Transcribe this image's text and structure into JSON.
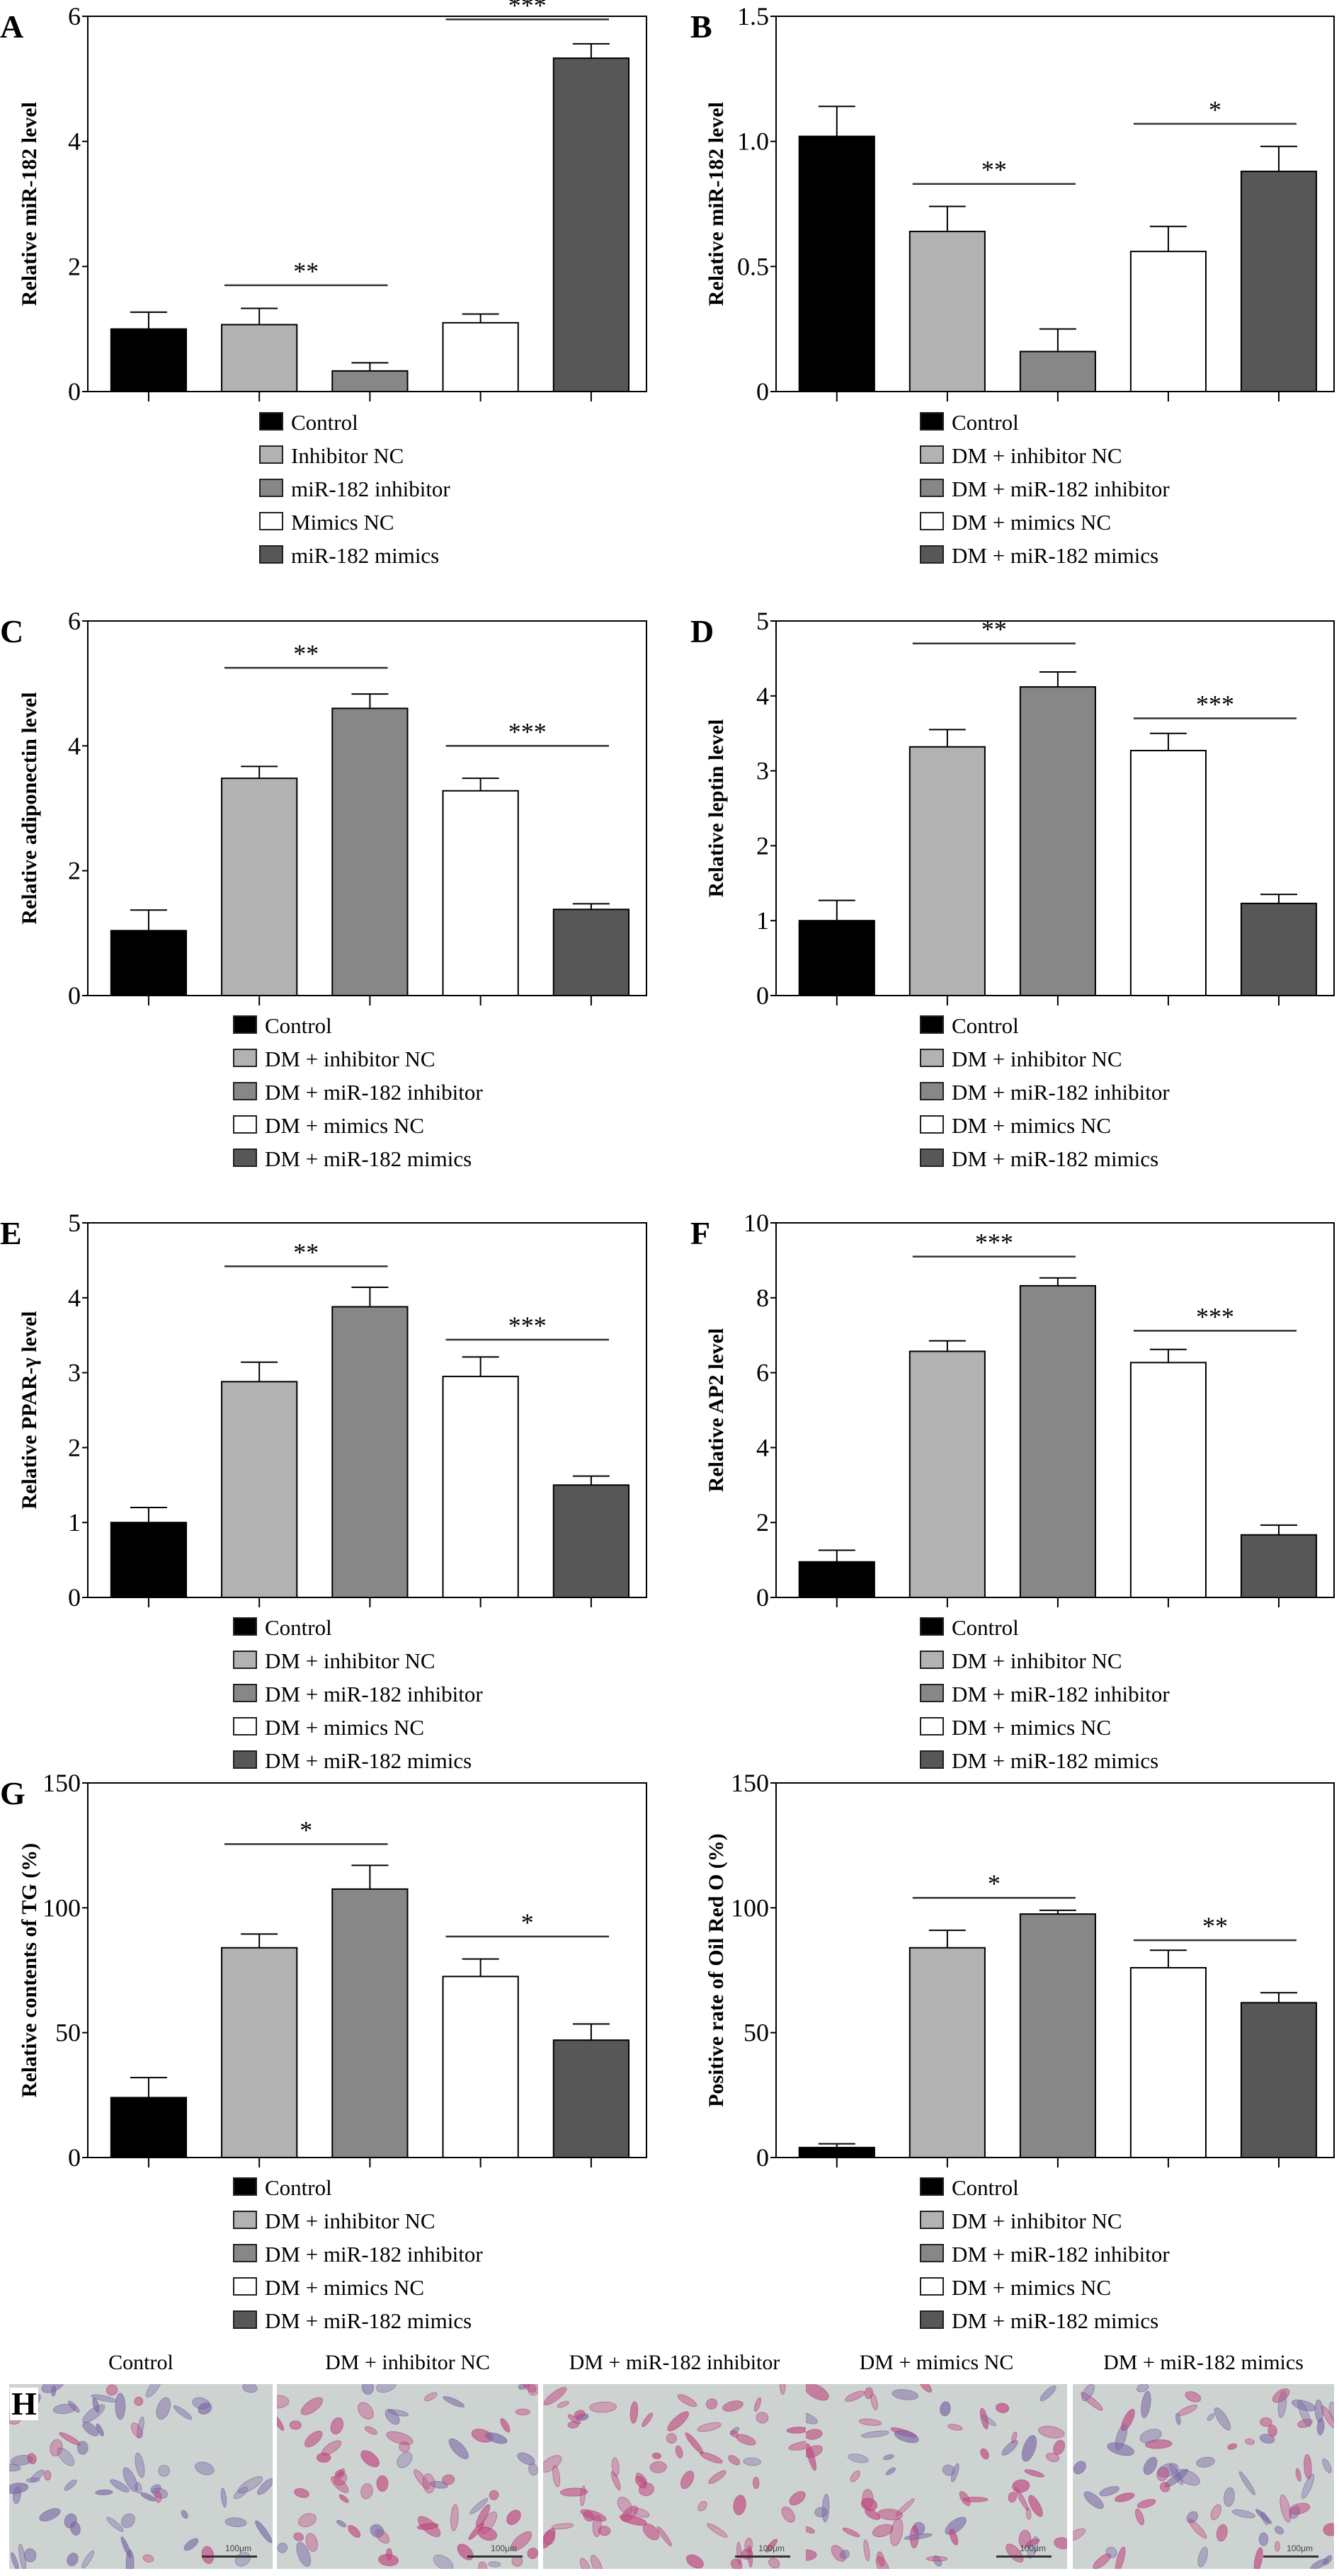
{
  "colors": {
    "control": "#000000",
    "inhibitor_nc": "#b2b2b2",
    "mir182_inhibitor": "#878787",
    "mimics_nc": "#ffffff",
    "mir182_mimics": "#575757",
    "cell_pink": "#c04a80",
    "cell_purple": "#7d6aa6"
  },
  "chart_data": [
    {
      "id": "A",
      "type": "bar",
      "panel_label": "A",
      "ylabel": "Relative miR-182 level",
      "ylim": [
        0,
        6
      ],
      "yticks": [
        "0",
        "2",
        "4",
        "6"
      ],
      "ytick_values": [
        0,
        2,
        4,
        6
      ],
      "categories": [
        "Control",
        "Inhibitor NC",
        "miR-182 inhibitor",
        "Mimics NC",
        "miR-182 mimics"
      ],
      "values": [
        1.0,
        1.07,
        0.33,
        1.1,
        5.33
      ],
      "errors": [
        0.27,
        0.26,
        0.13,
        0.14,
        0.23
      ],
      "significance": [
        {
          "from": 1,
          "to": 2,
          "label": "**",
          "y": 1.7
        },
        {
          "from": 3,
          "to": 4,
          "label": "***",
          "y": 5.95
        }
      ],
      "legend": [
        "Control",
        "Inhibitor NC",
        "miR-182 inhibitor",
        "Mimics NC",
        "miR-182 mimics"
      ],
      "legend_position": "bottom",
      "grid": false
    },
    {
      "id": "B",
      "type": "bar",
      "panel_label": "B",
      "ylabel": "Relative miR-182 level",
      "ylim": [
        0,
        1.5
      ],
      "yticks": [
        "0",
        "0.5",
        "1.0",
        "1.5"
      ],
      "ytick_values": [
        0,
        0.5,
        1.0,
        1.5
      ],
      "categories": [
        "Control",
        "DM + inhibitor NC",
        "DM + miR-182 inhibitor",
        "DM + mimics NC",
        "DM + miR-182 mimics"
      ],
      "values": [
        1.02,
        0.64,
        0.16,
        0.56,
        0.88
      ],
      "errors": [
        0.12,
        0.1,
        0.09,
        0.1,
        0.1
      ],
      "significance": [
        {
          "from": 1,
          "to": 2,
          "label": "**",
          "y": 0.83
        },
        {
          "from": 3,
          "to": 4,
          "label": "*",
          "y": 1.07
        }
      ],
      "legend": [
        "Control",
        "DM + inhibitor NC",
        "DM + miR-182 inhibitor",
        "DM + mimics NC",
        "DM + miR-182 mimics"
      ],
      "legend_position": "bottom",
      "grid": false
    },
    {
      "id": "C",
      "type": "bar",
      "panel_label": "C",
      "ylabel": "Relative adiponectin level",
      "ylim": [
        0,
        6
      ],
      "yticks": [
        "0",
        "2",
        "4",
        "6"
      ],
      "ytick_values": [
        0,
        2,
        4,
        6
      ],
      "categories": [
        "Control",
        "DM + inhibitor NC",
        "DM + miR-182 inhibitor",
        "DM + mimics NC",
        "DM + miR-182 mimics"
      ],
      "values": [
        1.04,
        3.48,
        4.6,
        3.28,
        1.38
      ],
      "errors": [
        0.33,
        0.19,
        0.23,
        0.2,
        0.09
      ],
      "significance": [
        {
          "from": 1,
          "to": 2,
          "label": "**",
          "y": 5.25
        },
        {
          "from": 3,
          "to": 4,
          "label": "***",
          "y": 4.0
        }
      ],
      "legend": [
        "Control",
        "DM + inhibitor NC",
        "DM + miR-182 inhibitor",
        "DM + mimics NC",
        "DM + miR-182 mimics"
      ],
      "legend_position": "bottom",
      "grid": false
    },
    {
      "id": "D",
      "type": "bar",
      "panel_label": "D",
      "ylabel": "Relative leptin level",
      "ylim": [
        0,
        5
      ],
      "yticks": [
        "0",
        "1",
        "2",
        "3",
        "4",
        "5"
      ],
      "ytick_values": [
        0,
        1,
        2,
        3,
        4,
        5
      ],
      "categories": [
        "Control",
        "DM + inhibitor NC",
        "DM + miR-182 inhibitor",
        "DM + mimics NC",
        "DM + miR-182 mimics"
      ],
      "values": [
        1.0,
        3.32,
        4.12,
        3.27,
        1.23
      ],
      "errors": [
        0.27,
        0.23,
        0.2,
        0.23,
        0.12
      ],
      "significance": [
        {
          "from": 1,
          "to": 2,
          "label": "**",
          "y": 4.7
        },
        {
          "from": 3,
          "to": 4,
          "label": "***",
          "y": 3.7
        }
      ],
      "legend": [
        "Control",
        "DM + inhibitor NC",
        "DM + miR-182 inhibitor",
        "DM + mimics NC",
        "DM + miR-182 mimics"
      ],
      "legend_position": "bottom",
      "grid": false
    },
    {
      "id": "E",
      "type": "bar",
      "panel_label": "E",
      "ylabel": "Relative PPAR-γ level",
      "ylim": [
        0,
        5
      ],
      "yticks": [
        "0",
        "1",
        "2",
        "3",
        "4",
        "5"
      ],
      "ytick_values": [
        0,
        1,
        2,
        3,
        4,
        5
      ],
      "categories": [
        "Control",
        "DM + inhibitor NC",
        "DM + miR-182 inhibitor",
        "DM + mimics NC",
        "DM + miR-182 mimics"
      ],
      "values": [
        1.0,
        2.88,
        3.88,
        2.95,
        1.5
      ],
      "errors": [
        0.2,
        0.26,
        0.26,
        0.26,
        0.12
      ],
      "significance": [
        {
          "from": 1,
          "to": 2,
          "label": "**",
          "y": 4.42
        },
        {
          "from": 3,
          "to": 4,
          "label": "***",
          "y": 3.44
        }
      ],
      "legend": [
        "Control",
        "DM + inhibitor NC",
        "DM + miR-182 inhibitor",
        "DM + mimics NC",
        "DM + miR-182 mimics"
      ],
      "legend_position": "bottom",
      "grid": false
    },
    {
      "id": "F",
      "type": "bar",
      "panel_label": "F",
      "ylabel": "Relative AP2 level",
      "ylim": [
        0,
        10
      ],
      "yticks": [
        "0",
        "2",
        "4",
        "6",
        "8",
        "10"
      ],
      "ytick_values": [
        0,
        2,
        4,
        6,
        8,
        10
      ],
      "categories": [
        "Control",
        "DM + inhibitor NC",
        "DM + miR-182 inhibitor",
        "DM + mimics NC",
        "DM + miR-182 mimics"
      ],
      "values": [
        0.95,
        6.57,
        8.32,
        6.27,
        1.67
      ],
      "errors": [
        0.31,
        0.28,
        0.21,
        0.35,
        0.26
      ],
      "significance": [
        {
          "from": 1,
          "to": 2,
          "label": "***",
          "y": 9.1
        },
        {
          "from": 3,
          "to": 4,
          "label": "***",
          "y": 7.12
        }
      ],
      "legend": [
        "Control",
        "DM + inhibitor NC",
        "DM + miR-182 inhibitor",
        "DM + mimics NC",
        "DM + miR-182 mimics"
      ],
      "legend_position": "bottom",
      "grid": false
    },
    {
      "id": "G",
      "type": "bar",
      "panel_label": "G",
      "ylabel": "Relative contents of TG (%)",
      "ylim": [
        0,
        150
      ],
      "yticks": [
        "0",
        "50",
        "100",
        "150"
      ],
      "ytick_values": [
        0,
        50,
        100,
        150
      ],
      "categories": [
        "Control",
        "DM + inhibitor NC",
        "DM + miR-182 inhibitor",
        "DM + mimics NC",
        "DM + miR-182 mimics"
      ],
      "values": [
        24,
        84,
        107.5,
        72.5,
        47
      ],
      "errors": [
        8,
        5.5,
        9.5,
        7,
        6.5
      ],
      "significance": [
        {
          "from": 1,
          "to": 2,
          "label": "*",
          "y": 125.5
        },
        {
          "from": 3,
          "to": 4,
          "label": "*",
          "y": 88.5
        }
      ],
      "legend": [
        "Control",
        "DM + inhibitor NC",
        "DM + miR-182 inhibitor",
        "DM + mimics NC",
        "DM + miR-182 mimics"
      ],
      "legend_position": "bottom",
      "grid": false
    },
    {
      "id": "G2",
      "type": "bar",
      "panel_label": "",
      "ylabel": "Positive rate of Oil Red O (%)",
      "ylim": [
        0,
        150
      ],
      "yticks": [
        "0",
        "50",
        "100",
        "150"
      ],
      "ytick_values": [
        0,
        50,
        100,
        150
      ],
      "categories": [
        "Control",
        "DM + inhibitor NC",
        "DM + miR-182 inhibitor",
        "DM + mimics NC",
        "DM + miR-182 mimics"
      ],
      "values": [
        4,
        84,
        97.5,
        76,
        62
      ],
      "errors": [
        1.5,
        7,
        1.5,
        7,
        4
      ],
      "significance": [
        {
          "from": 1,
          "to": 2,
          "label": "*",
          "y": 104
        },
        {
          "from": 3,
          "to": 4,
          "label": "**",
          "y": 87
        }
      ],
      "legend": [
        "Control",
        "DM + inhibitor NC",
        "DM + miR-182 inhibitor",
        "DM + mimics NC",
        "DM + miR-182 mimics"
      ],
      "legend_position": "bottom",
      "grid": false
    }
  ],
  "micrographs": {
    "panel_label": "H",
    "scale_bar": "100μm",
    "items": [
      {
        "title": "Control",
        "stain": 0.15
      },
      {
        "title": "DM + inhibitor NC",
        "stain": 0.75
      },
      {
        "title": "DM + miR-182 inhibitor",
        "stain": 0.95
      },
      {
        "title": "DM + mimics NC",
        "stain": 0.7
      },
      {
        "title": "DM + miR-182 mimics",
        "stain": 0.45
      }
    ]
  }
}
